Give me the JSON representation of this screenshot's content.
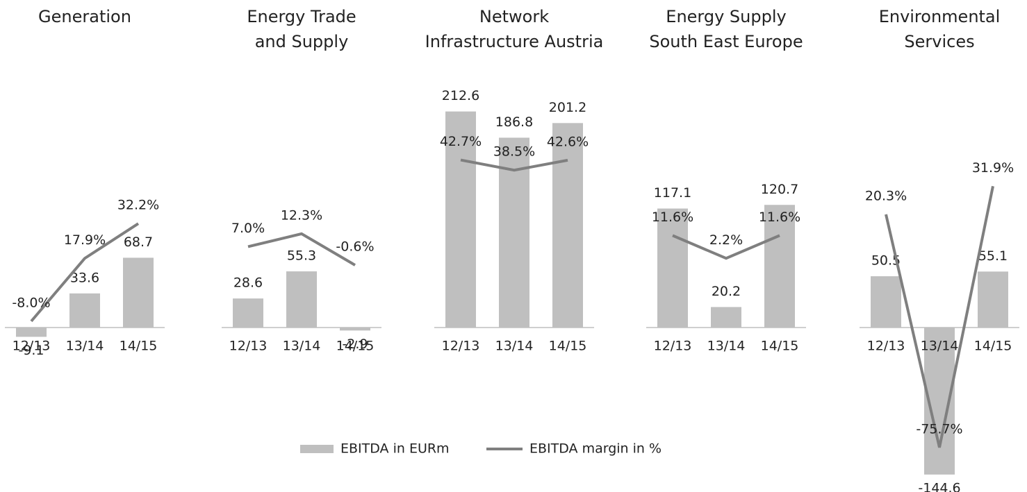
{
  "chart_data": {
    "type": "bar-line",
    "series": [
      {
        "name": "EBITDA in EURm",
        "color": "#bfbfbf"
      },
      {
        "name": "EBITDA margin in %",
        "color": "#7f7f7f"
      }
    ],
    "ylim": [
      -148.8,
      254
    ],
    "panels": [
      {
        "title": [
          "Generation"
        ],
        "categories": [
          "12/13",
          "13/14",
          "14/15"
        ],
        "y2lim": [
          -72.9,
          95.7
        ],
        "series": [
          {
            "values": [
              -9.1,
              33.6,
              68.7
            ]
          },
          {
            "values": [
              -8.0,
              17.9,
              32.2
            ],
            "value_labels": [
              "-8.0%",
              "17.9%",
              "32.2%"
            ]
          }
        ]
      },
      {
        "title": [
          "Energy Trade",
          "and Supply"
        ],
        "categories": [
          "12/13",
          "13/14",
          "14/15"
        ],
        "y2lim": [
          -88.6,
          80
        ],
        "series": [
          {
            "values": [
              28.6,
              55.3,
              -2.9
            ]
          },
          {
            "values": [
              7.0,
              12.3,
              -0.6
            ],
            "value_labels": [
              "7.0%",
              "12.3%",
              "-0.6%"
            ]
          }
        ]
      },
      {
        "title": [
          "Network",
          "Infrastructure Austria"
        ],
        "categories": [
          "12/13",
          "13/14",
          "14/15"
        ],
        "y2lim": [
          -88.6,
          80
        ],
        "series": [
          {
            "values": [
              212.6,
              186.8,
              201.2
            ]
          },
          {
            "values": [
              42.7,
              38.5,
              42.6
            ],
            "value_labels": [
              "42.7%",
              "38.5%",
              "42.6%"
            ]
          }
        ]
      },
      {
        "title": [
          "Energy Supply",
          "South East Europe"
        ],
        "categories": [
          "12/13",
          "13/14",
          "14/15"
        ],
        "y2lim": [
          -88.6,
          80
        ],
        "series": [
          {
            "values": [
              117.1,
              20.2,
              120.7
            ]
          },
          {
            "values": [
              11.6,
              2.2,
              11.6
            ],
            "value_labels": [
              "11.6%",
              "2.2%",
              "11.6%"
            ]
          }
        ]
      },
      {
        "title": [
          "Environmental",
          "Services"
        ],
        "categories": [
          "12/13",
          "13/14",
          "14/15"
        ],
        "y2lim": [
          -88.6,
          80
        ],
        "series": [
          {
            "values": [
              50.5,
              -144.6,
              55.1
            ]
          },
          {
            "values": [
              20.3,
              -75.7,
              31.9
            ],
            "value_labels": [
              "20.3%",
              "-75.7%",
              "31.9%"
            ]
          }
        ]
      }
    ]
  }
}
